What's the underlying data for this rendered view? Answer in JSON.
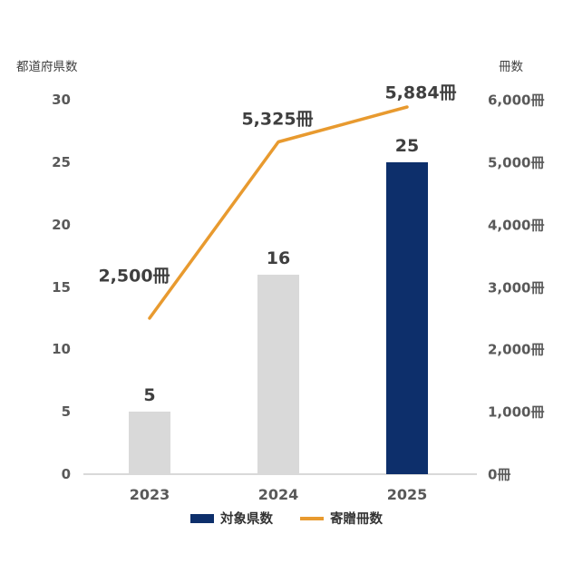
{
  "chart_data": {
    "type": "bar+line",
    "categories": [
      "2023",
      "2024",
      "2025"
    ],
    "series": [
      {
        "name": "対象県数",
        "type": "bar",
        "axis": "left",
        "values": [
          5,
          16,
          25
        ],
        "value_labels": [
          "5",
          "16",
          "25"
        ],
        "bar_colors": [
          "#d9d9d9",
          "#d9d9d9",
          "#0d2f6b"
        ]
      },
      {
        "name": "寄贈冊数",
        "type": "line",
        "axis": "right",
        "values": [
          2500,
          5325,
          5884
        ],
        "value_labels": [
          "2,500冊",
          "5,325冊",
          "5,884冊"
        ],
        "label_offsets": [
          [
            -17,
            -48
          ],
          [
            -1,
            -26
          ],
          [
            15,
            -17
          ]
        ],
        "color": "#e89a2f"
      }
    ],
    "left_axis": {
      "title": "都道府県数",
      "min": 0,
      "max": 30,
      "ticks": [
        0,
        5,
        10,
        15,
        20,
        25,
        30
      ],
      "tick_labels": [
        "0",
        "5",
        "10",
        "15",
        "20",
        "25",
        "30"
      ]
    },
    "right_axis": {
      "title": "冊数",
      "min": 0,
      "max": 6000,
      "ticks": [
        0,
        1000,
        2000,
        3000,
        4000,
        5000,
        6000
      ],
      "tick_labels": [
        "0冊",
        "1,000冊",
        "2,000冊",
        "3,000冊",
        "4,000冊",
        "5,000冊",
        "6,000冊"
      ]
    },
    "legend": [
      {
        "label": "対象県数",
        "swatch": "bar",
        "color": "#0d2f6b"
      },
      {
        "label": "寄贈冊数",
        "swatch": "line",
        "color": "#e89a2f"
      }
    ],
    "legend_position": "bottom",
    "grid": false,
    "colors": {
      "bar_default": "#d9d9d9",
      "bar_accent": "#0d2f6b",
      "line": "#e89a2f",
      "tick_text": "#595959",
      "label_text": "#3f3f3f",
      "axis_line": "#d9d9d9",
      "background": "#ffffff"
    }
  }
}
